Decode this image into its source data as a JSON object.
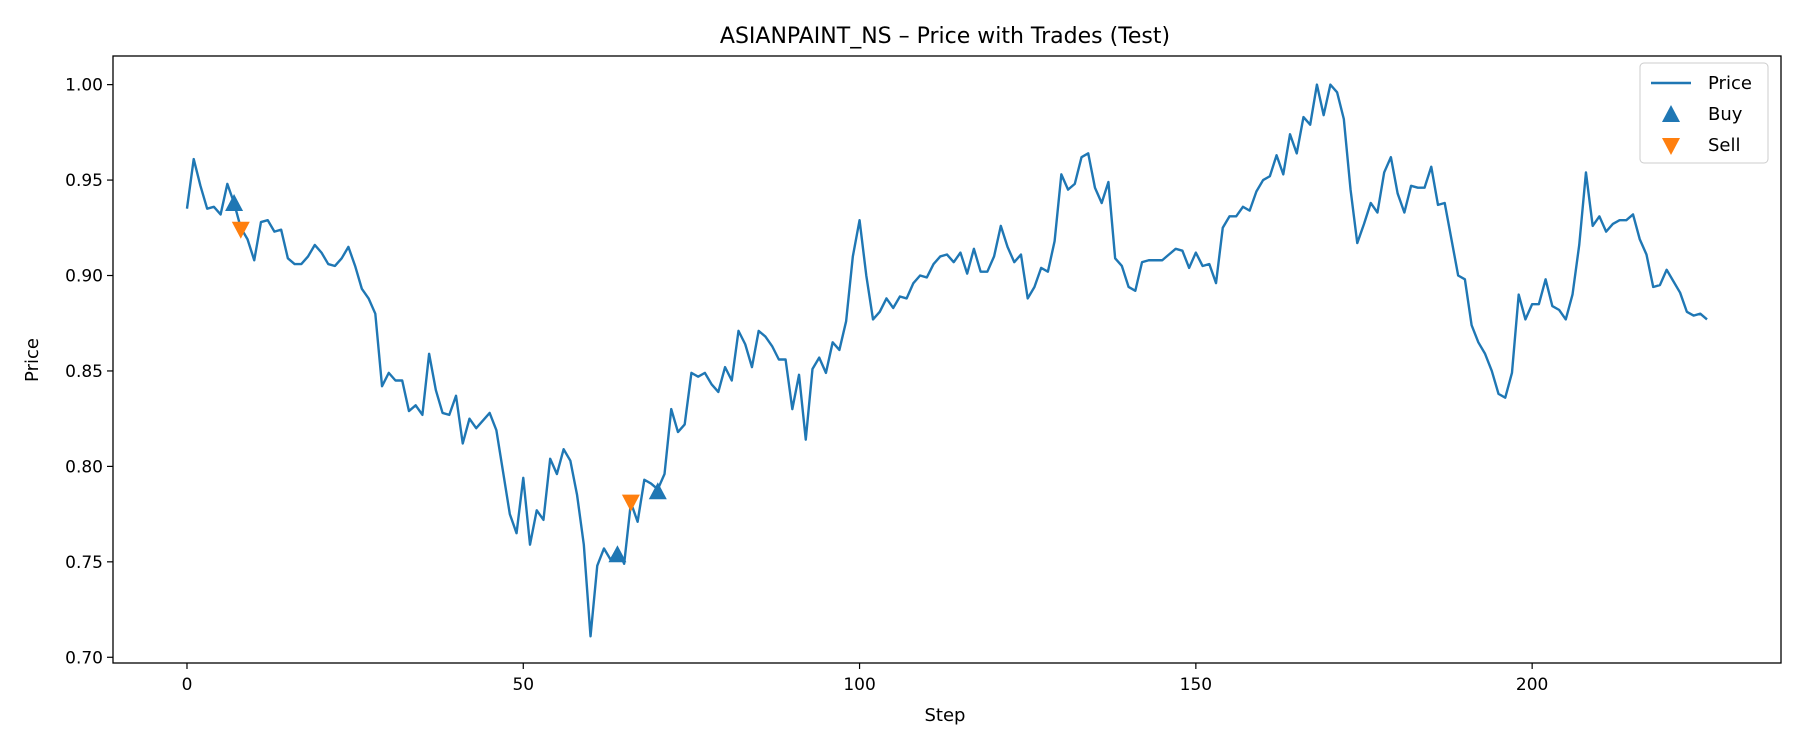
{
  "chart_data": {
    "type": "line",
    "title": "ASIANPAINT_NS – Price with Trades (Test)",
    "xlabel": "Step",
    "ylabel": "Price",
    "xlim": [
      -11,
      237
    ],
    "ylim": [
      0.697,
      1.015
    ],
    "xticks": [
      0,
      50,
      100,
      150,
      200
    ],
    "yticks": [
      0.7,
      0.75,
      0.8,
      0.85,
      0.9,
      0.95,
      1.0
    ],
    "grid": false,
    "legend_position": "top-right",
    "colors": {
      "price": "#1f77b4",
      "buy": "#1f77b4",
      "sell": "#ff7f0e"
    },
    "series": [
      {
        "name": "Price",
        "kind": "line",
        "x_start": 0,
        "y": [
          0.935,
          0.961,
          0.947,
          0.935,
          0.936,
          0.932,
          0.948,
          0.938,
          0.925,
          0.919,
          0.908,
          0.928,
          0.929,
          0.923,
          0.924,
          0.909,
          0.906,
          0.906,
          0.91,
          0.916,
          0.912,
          0.906,
          0.905,
          0.909,
          0.915,
          0.905,
          0.893,
          0.888,
          0.88,
          0.842,
          0.849,
          0.845,
          0.845,
          0.829,
          0.832,
          0.827,
          0.859,
          0.84,
          0.828,
          0.827,
          0.837,
          0.812,
          0.825,
          0.82,
          0.824,
          0.828,
          0.819,
          0.797,
          0.775,
          0.765,
          0.794,
          0.759,
          0.777,
          0.772,
          0.804,
          0.796,
          0.809,
          0.803,
          0.785,
          0.759,
          0.711,
          0.748,
          0.757,
          0.751,
          0.757,
          0.749,
          0.781,
          0.771,
          0.793,
          0.791,
          0.788,
          0.796,
          0.83,
          0.818,
          0.822,
          0.849,
          0.847,
          0.849,
          0.843,
          0.839,
          0.852,
          0.845,
          0.871,
          0.864,
          0.852,
          0.871,
          0.868,
          0.863,
          0.856,
          0.856,
          0.83,
          0.848,
          0.814,
          0.851,
          0.857,
          0.849,
          0.865,
          0.861,
          0.876,
          0.91,
          0.929,
          0.9,
          0.877,
          0.881,
          0.888,
          0.883,
          0.889,
          0.888,
          0.896,
          0.9,
          0.899,
          0.906,
          0.91,
          0.911,
          0.907,
          0.912,
          0.901,
          0.914,
          0.902,
          0.902,
          0.91,
          0.926,
          0.915,
          0.907,
          0.911,
          0.888,
          0.894,
          0.904,
          0.902,
          0.918,
          0.953,
          0.945,
          0.948,
          0.962,
          0.964,
          0.946,
          0.938,
          0.949,
          0.909,
          0.905,
          0.894,
          0.892,
          0.907,
          0.908,
          0.908,
          0.908,
          0.911,
          0.914,
          0.913,
          0.904,
          0.912,
          0.905,
          0.906,
          0.896,
          0.925,
          0.931,
          0.931,
          0.936,
          0.934,
          0.944,
          0.95,
          0.952,
          0.963,
          0.953,
          0.974,
          0.964,
          0.983,
          0.979,
          1.0,
          0.984,
          1.0,
          0.996,
          0.982,
          0.945,
          0.917,
          0.927,
          0.938,
          0.933,
          0.954,
          0.962,
          0.943,
          0.933,
          0.947,
          0.946,
          0.946,
          0.957,
          0.937,
          0.938,
          0.919,
          0.9,
          0.898,
          0.874,
          0.865,
          0.859,
          0.85,
          0.838,
          0.836,
          0.849,
          0.89,
          0.877,
          0.885,
          0.885,
          0.898,
          0.884,
          0.882,
          0.877,
          0.89,
          0.916,
          0.954,
          0.926,
          0.931,
          0.923,
          0.927,
          0.929,
          0.929,
          0.932,
          0.919,
          0.911,
          0.894,
          0.895,
          0.903,
          0.897,
          0.891,
          0.881,
          0.879,
          0.88,
          0.877
        ]
      },
      {
        "name": "Buy",
        "kind": "marker-up",
        "points": [
          {
            "x": 7,
            "y": 0.938
          },
          {
            "x": 64,
            "y": 0.754
          },
          {
            "x": 70,
            "y": 0.787
          }
        ]
      },
      {
        "name": "Sell",
        "kind": "marker-down",
        "points": [
          {
            "x": 8,
            "y": 0.924
          },
          {
            "x": 66,
            "y": 0.781
          }
        ]
      }
    ]
  }
}
